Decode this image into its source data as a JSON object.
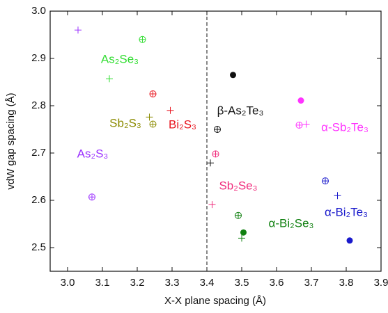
{
  "chart_data": {
    "type": "scatter",
    "x_label": "X-X plane spacing (Å)",
    "y_label": "vdW gap spacing (Å)",
    "xlim": [
      2.95,
      3.9
    ],
    "ylim": [
      2.45,
      3.0
    ],
    "xticks": [
      {
        "value": 3,
        "label": "3.0"
      },
      3.1,
      3.2,
      3.3,
      3.4,
      3.5,
      3.6,
      3.7,
      3.8,
      3.9
    ],
    "yticks": [
      2.5,
      2.6,
      2.7,
      2.8,
      2.9,
      {
        "value": 3,
        "label": "3.0"
      }
    ],
    "vline": 3.4,
    "series": [
      {
        "name": "As₂S₃",
        "color": "#9b30ff",
        "x": [
          3.03,
          3.07
        ],
        "values": [
          2.96,
          2.607
        ],
        "markers": [
          "plus",
          "circle-plus"
        ]
      },
      {
        "name": "As₂Se₃",
        "color": "#33dd33",
        "x": [
          3.215,
          3.12
        ],
        "values": [
          2.94,
          2.857
        ],
        "markers": [
          "circle-plus",
          "plus"
        ]
      },
      {
        "name": "Sb₂S₃",
        "color": "#8b8b00",
        "x": [
          3.235,
          3.245
        ],
        "values": [
          2.776,
          2.761
        ],
        "markers": [
          "plus",
          "circle-plus"
        ]
      },
      {
        "name": "Bi₂S₃",
        "color": "#e8141e",
        "x": [
          3.245,
          3.295
        ],
        "values": [
          2.825,
          2.79
        ],
        "markers": [
          "circle-plus",
          "plus"
        ]
      },
      {
        "name": "β-As₂Te₃",
        "color": "#111111",
        "x": [
          3.475,
          3.43,
          3.41
        ],
        "values": [
          2.865,
          2.75,
          2.679
        ],
        "markers": [
          "dot",
          "circle-plus",
          "plus"
        ]
      },
      {
        "name": "Sb₂Se₃",
        "color": "#f0287a",
        "x": [
          3.425,
          3.415
        ],
        "values": [
          2.698,
          2.591
        ],
        "markers": [
          "circle-plus",
          "plus"
        ]
      },
      {
        "name": "α-Sb₂Te₃",
        "color": "#ff33ff",
        "x": [
          3.67,
          3.665,
          3.685
        ],
        "values": [
          2.811,
          2.759,
          2.761
        ],
        "markers": [
          "dot",
          "circle-plus",
          "plus"
        ]
      },
      {
        "name": "α-Bi₂Se₃",
        "color": "#108010",
        "x": [
          3.49,
          3.505,
          3.5
        ],
        "values": [
          2.568,
          2.532,
          2.52
        ],
        "markers": [
          "circle-plus",
          "dot",
          "plus"
        ]
      },
      {
        "name": "α-Bi₂Te₃",
        "color": "#1a1acc",
        "x": [
          3.74,
          3.775,
          3.81
        ],
        "values": [
          2.641,
          2.61,
          2.515
        ],
        "markers": [
          "circle-plus",
          "plus",
          "dot"
        ]
      }
    ]
  }
}
